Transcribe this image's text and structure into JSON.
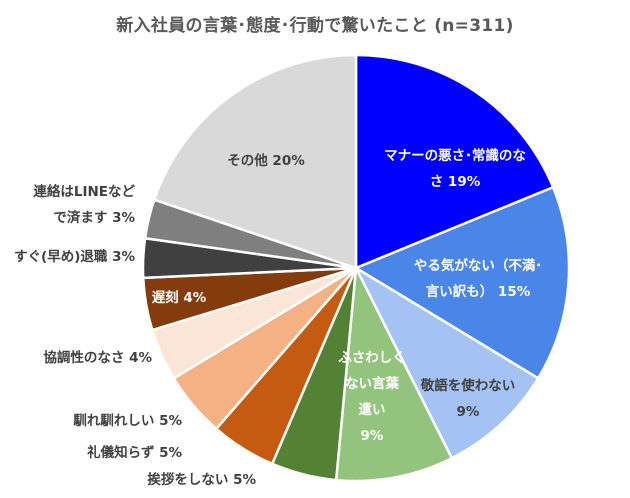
{
  "chart_data": {
    "type": "pie",
    "title": "新入社員の言葉･態度･行動で驚いたこと (n=311)",
    "start": "top, clockwise",
    "slices": [
      {
        "label": [
          "マナーの悪さ･常識のな",
          "さ 19%"
        ],
        "value": 19,
        "color": "#0000FF",
        "text_color": "#ffffff",
        "label_inside": true
      },
      {
        "label": [
          "やる気がない（不満･",
          "言い訳も）  15%"
        ],
        "value": 15,
        "color": "#4A86E8",
        "text_color": "#ffffff",
        "label_inside": true
      },
      {
        "label": [
          "敬語を使わない",
          "9%"
        ],
        "value": 9,
        "color": "#A4C2F4",
        "text_color": "#404040",
        "label_inside": true
      },
      {
        "label": [
          "ふさわしく",
          "ない言葉",
          "遣い",
          "9%"
        ],
        "value": 9,
        "color": "#93C47D",
        "text_color": "#ffffff",
        "label_inside": true
      },
      {
        "label": [
          "挨拶をしない 5%"
        ],
        "value": 5,
        "color": "#548235",
        "text_color": "#404040",
        "label_inside": false
      },
      {
        "label": [
          "礼儀知らず 5%"
        ],
        "value": 5,
        "color": "#C55A11",
        "text_color": "#404040",
        "label_inside": false
      },
      {
        "label": [
          "馴れ馴れしい 5%"
        ],
        "value": 5,
        "color": "#F4B183",
        "text_color": "#404040",
        "label_inside": false
      },
      {
        "label": [
          "協調性のなさ 4%"
        ],
        "value": 4,
        "color": "#FBE5D6",
        "text_color": "#404040",
        "label_inside": false
      },
      {
        "label": [
          "遅刻 4%"
        ],
        "value": 4,
        "color": "#843C0C",
        "text_color": "#ffffff",
        "label_inside": true
      },
      {
        "label": [
          "すぐ(早め)退職 3%"
        ],
        "value": 3,
        "color": "#404040",
        "text_color": "#404040",
        "label_inside": false
      },
      {
        "label": [
          "連絡はLINEなど",
          "で済ます 3%"
        ],
        "value": 3,
        "color": "#7F7F7F",
        "text_color": "#404040",
        "label_inside": false
      },
      {
        "label": [
          "その他 20%"
        ],
        "value": 20,
        "color": "#D9D9D9",
        "text_color": "#404040",
        "label_inside": true
      }
    ]
  }
}
